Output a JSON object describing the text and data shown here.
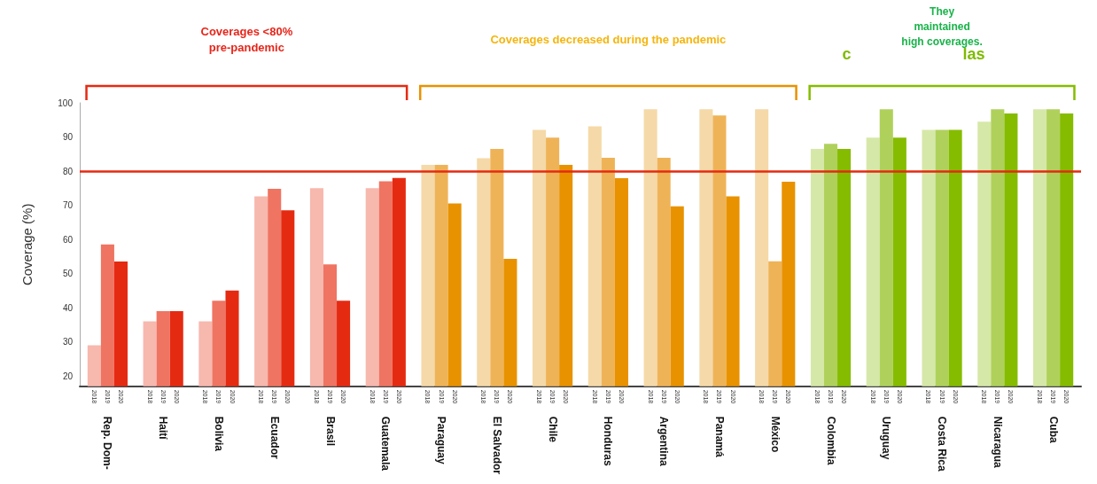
{
  "chart_data": {
    "type": "bar",
    "ylabel": "Coverage (%)",
    "categories": [
      "Rep. Dom-",
      "Haití",
      "Bolivia",
      "Ecuador",
      "Brasil",
      "Guatemala",
      "Paraguay",
      "El Salvador",
      "Chile",
      "Honduras",
      "Argentina",
      "Panamá",
      "México",
      "Colombia",
      "Uruguay",
      "Costa Rica",
      "Nicaragua",
      "Cuba"
    ],
    "series": [
      {
        "name": "2018",
        "colors": [
          "#f7b8ae",
          "#f7b8ae",
          "#f7b8ae",
          "#f7b8ae",
          "#f7b8ae",
          "#f7b8ae",
          "#f5d9a8",
          "#f5d9a8",
          "#f5d9a8",
          "#f5d9a8",
          "#f5d9a8",
          "#f5d9a8",
          "#f5d9a8",
          "#d6e8a8",
          "#d6e8a8",
          "#d6e8a8",
          "#d6e8a8",
          "#d6e8a8"
        ],
        "values": [
          29,
          36,
          36,
          72.6,
          75,
          75,
          81.8,
          83.8,
          92.1,
          93.1,
          98.1,
          98.1,
          98.1,
          86.5,
          89.8,
          92.1,
          94.5,
          98.1
        ]
      },
      {
        "name": "2019",
        "colors": [
          "#ef7462",
          "#ef7462",
          "#ef7462",
          "#ef7462",
          "#ef7462",
          "#ef7462",
          "#efb357",
          "#efb357",
          "#efb357",
          "#efb357",
          "#efb357",
          "#efb357",
          "#efb357",
          "#afd15b",
          "#afd15b",
          "#afd15b",
          "#afd15b",
          "#afd15b"
        ],
        "values": [
          58.5,
          39,
          42,
          74.8,
          52.7,
          77,
          81.8,
          86.5,
          89.8,
          83.9,
          83.9,
          96.3,
          53.6,
          88,
          98.1,
          92.1,
          98.1,
          98.1
        ]
      },
      {
        "name": "2020",
        "colors": [
          "#e52a12",
          "#e52a12",
          "#e52a12",
          "#e52a12",
          "#e52a12",
          "#e52a12",
          "#e89200",
          "#e89200",
          "#e89200",
          "#e89200",
          "#e89200",
          "#e89200",
          "#e89200",
          "#85bc00",
          "#85bc00",
          "#85bc00",
          "#85bc00",
          "#85bc00"
        ],
        "values": [
          53.5,
          39,
          45,
          68.5,
          42,
          78,
          70.5,
          54.3,
          81.8,
          77.9,
          69.7,
          72.6,
          76.9,
          86.5,
          89.8,
          92.1,
          96.9,
          96.9
        ]
      }
    ],
    "ylim": [
      17,
      100
    ],
    "yticks": [
      20,
      30,
      40,
      50,
      60,
      70,
      80,
      90,
      100
    ],
    "ref_lines": [
      {
        "axis": "y",
        "value": 80,
        "color": "#e52a12"
      }
    ],
    "annotations": [
      "Coverages <80%\npre-pandemic",
      "Coverages decreased during the pandemic",
      "They\nmaintained\nhigh coverages.",
      "c",
      "las"
    ]
  }
}
